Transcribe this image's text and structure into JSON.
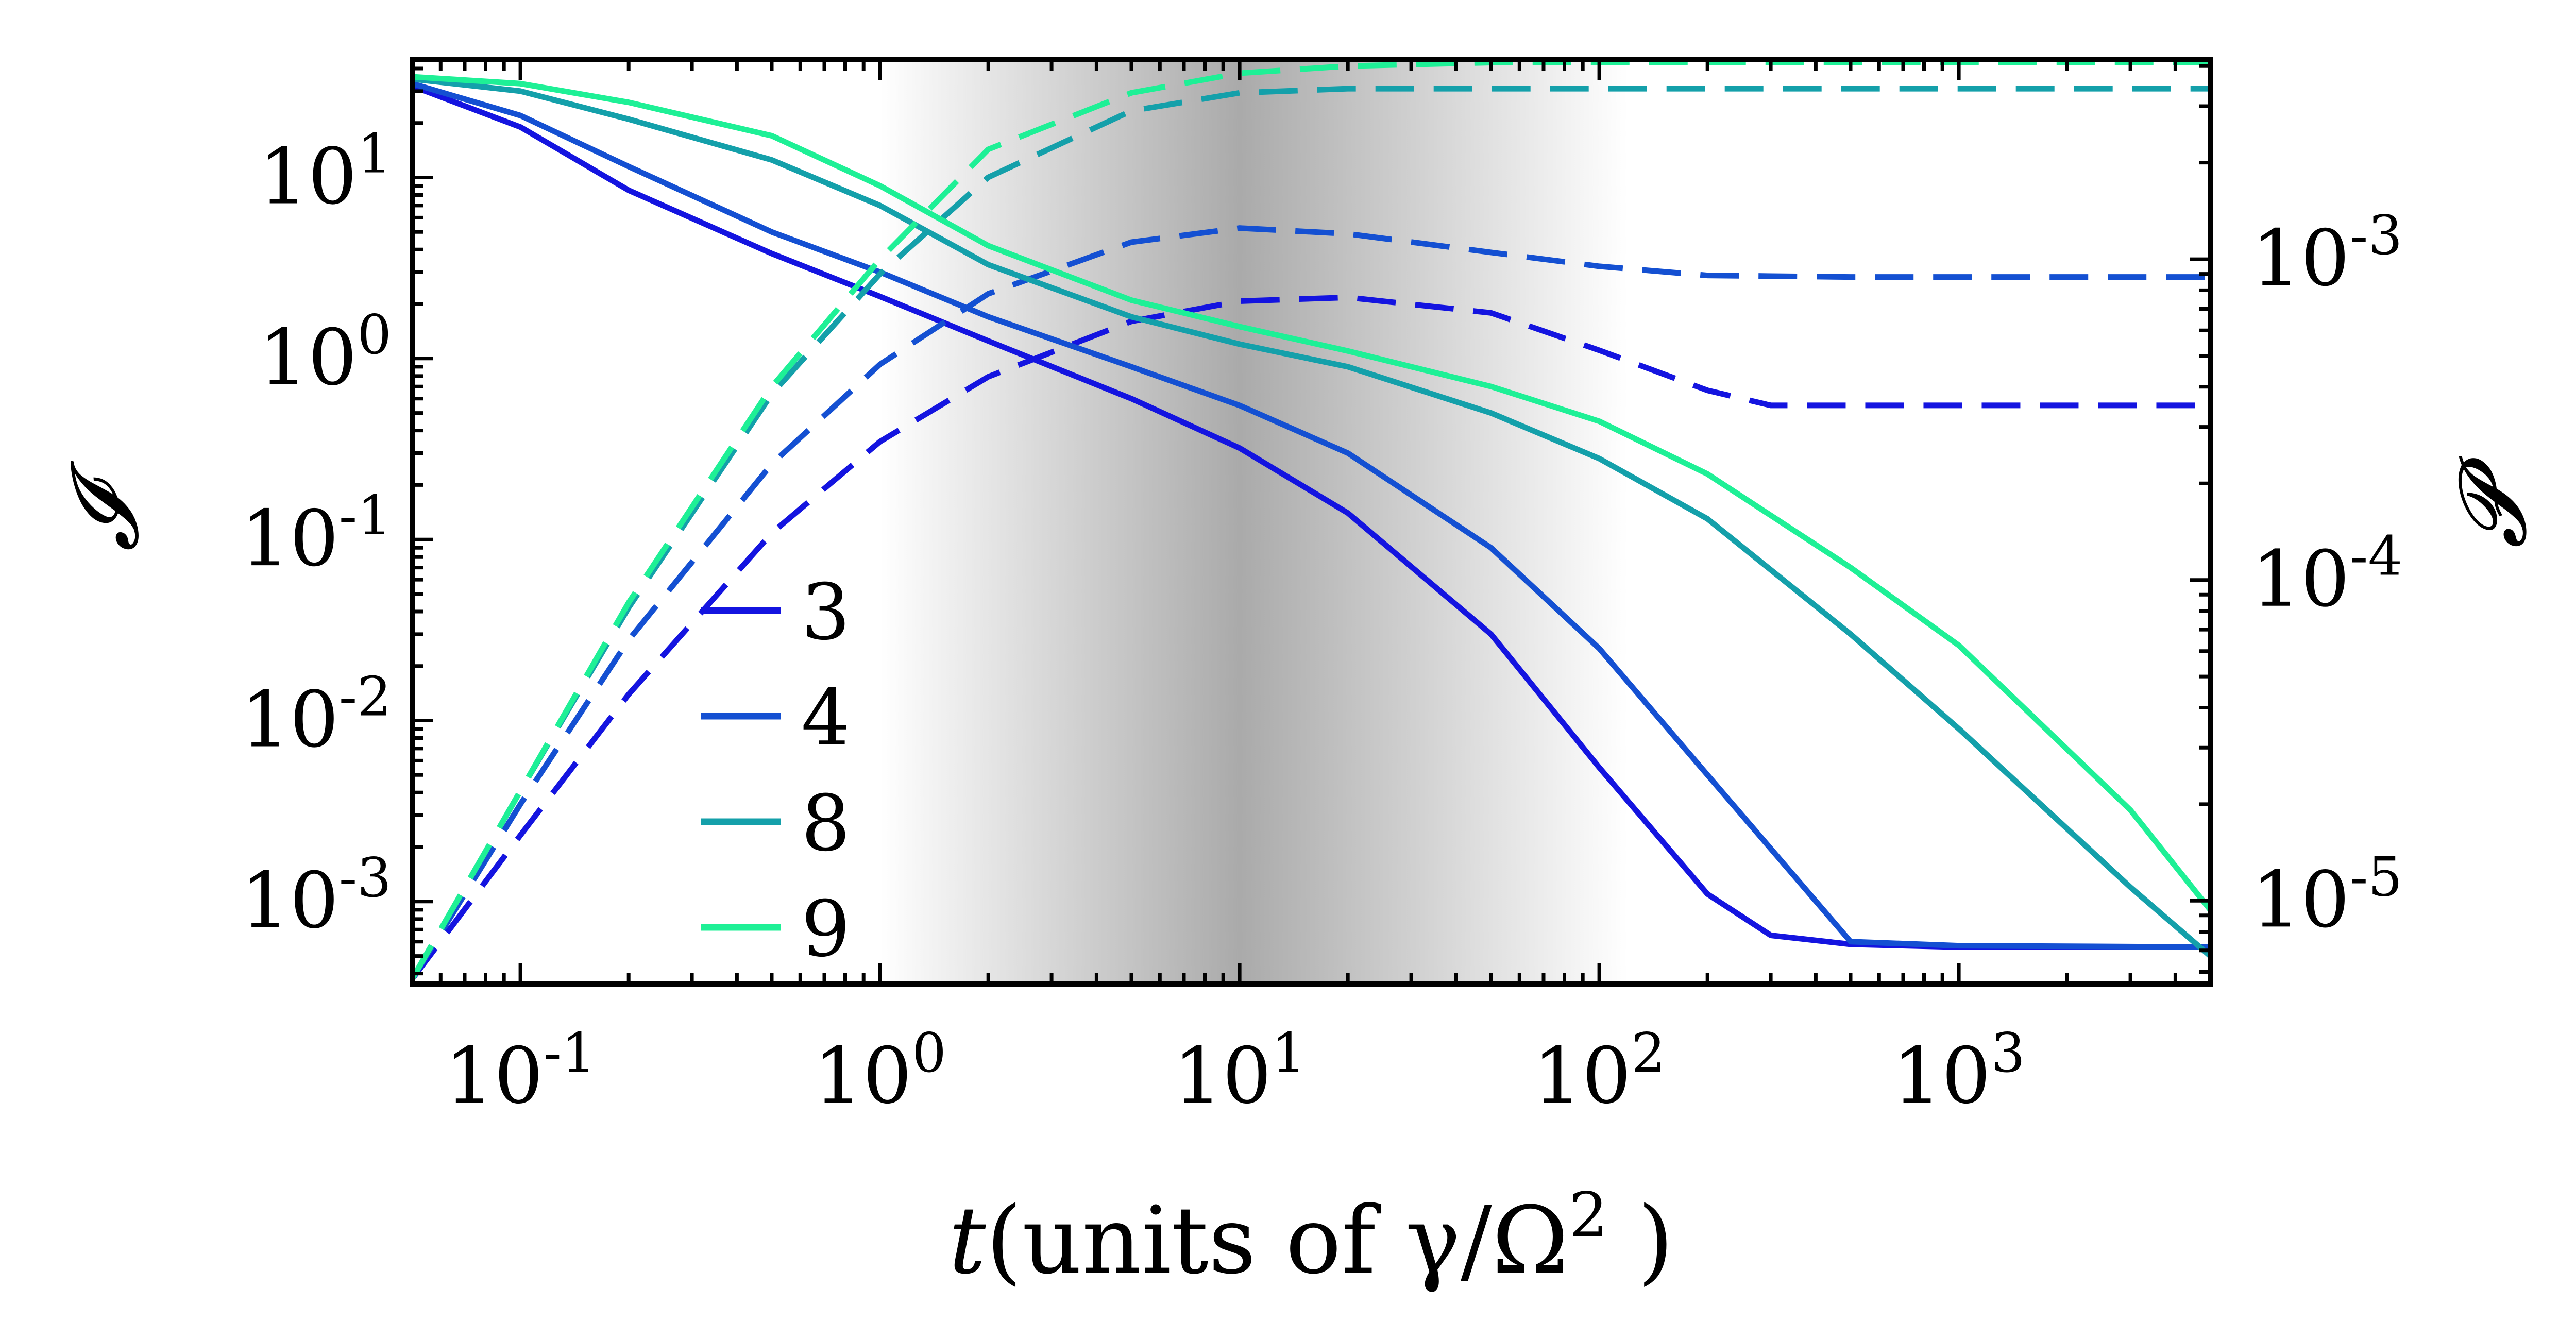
{
  "chart_data": {
    "type": "line",
    "x_scale": "log",
    "y_left_scale": "log",
    "y_right_scale": "log",
    "xlim": [
      0.05,
      5000
    ],
    "ylim_left": [
      0.00035,
      45
    ],
    "ylim_right": [
      5.5e-06,
      0.0042
    ],
    "xlabel_var": "t",
    "xlabel_rest": "(units of γ/Ω",
    "xlabel_sup": "2",
    "xlabel_close": " )",
    "ylabel_left": "𝓘",
    "ylabel_right": "𝓟",
    "x_ticks": [
      {
        "base": "10",
        "exp": "-1",
        "value": 0.1
      },
      {
        "base": "10",
        "exp": "0",
        "value": 1
      },
      {
        "base": "10",
        "exp": "1",
        "value": 10
      },
      {
        "base": "10",
        "exp": "2",
        "value": 100
      },
      {
        "base": "10",
        "exp": "3",
        "value": 1000
      }
    ],
    "y_left_ticks": [
      {
        "base": "10",
        "exp": "1",
        "value": 10
      },
      {
        "base": "10",
        "exp": "0",
        "value": 1
      },
      {
        "base": "10",
        "exp": "-1",
        "value": 0.1
      },
      {
        "base": "10",
        "exp": "-2",
        "value": 0.01
      },
      {
        "base": "10",
        "exp": "-3",
        "value": 0.001
      }
    ],
    "y_right_ticks": [
      {
        "base": "10",
        "exp": "-3",
        "value": 0.001
      },
      {
        "base": "10",
        "exp": "-4",
        "value": 0.0001
      },
      {
        "base": "10",
        "exp": "-5",
        "value": 1e-05
      }
    ],
    "shaded_region": {
      "x_from": 1,
      "x_peak": 10,
      "x_to": 120
    },
    "legend_position": "lower-left inside",
    "series": [
      {
        "name": "3",
        "color": "#1414e0",
        "solid": {
          "x": [
            0.05,
            0.1,
            0.2,
            0.5,
            1,
            2,
            5,
            10,
            20,
            50,
            100,
            200,
            300,
            500,
            1000,
            5000
          ],
          "y": [
            32,
            19,
            8.5,
            3.8,
            2.2,
            1.25,
            0.6,
            0.32,
            0.14,
            0.03,
            0.0055,
            0.0011,
            0.00065,
            0.00058,
            0.00056,
            0.00056
          ]
        },
        "dashed": {
          "x": [
            0.05,
            0.1,
            0.2,
            0.5,
            1,
            2,
            5,
            10,
            20,
            50,
            100,
            200,
            300,
            500,
            1000,
            5000
          ],
          "y": [
            5.7e-06,
            1.6e-05,
            4.4e-05,
            0.00014,
            0.00027,
            0.00043,
            0.00064,
            0.00074,
            0.00076,
            0.00068,
            0.00052,
            0.00039,
            0.00035,
            0.00035,
            0.00035,
            0.00035
          ]
        }
      },
      {
        "name": "4",
        "color": "#1450d2",
        "solid": {
          "x": [
            0.05,
            0.1,
            0.2,
            0.5,
            1,
            2,
            5,
            10,
            20,
            50,
            100,
            200,
            500,
            1000,
            5000
          ],
          "y": [
            33,
            22,
            11.5,
            5,
            3,
            1.7,
            0.9,
            0.55,
            0.3,
            0.09,
            0.025,
            0.005,
            0.0006,
            0.00057,
            0.00056
          ]
        },
        "dashed": {
          "x": [
            0.05,
            0.1,
            0.2,
            0.5,
            1,
            2,
            5,
            10,
            20,
            50,
            100,
            200,
            500,
            1000,
            5000
          ],
          "y": [
            5.7e-06,
            2e-05,
            6.5e-05,
            0.00023,
            0.00047,
            0.00078,
            0.00113,
            0.00125,
            0.0012,
            0.00105,
            0.00095,
            0.00089,
            0.00088,
            0.00088,
            0.00088
          ]
        }
      },
      {
        "name": "8",
        "color": "#14a0aa",
        "solid": {
          "x": [
            0.05,
            0.1,
            0.2,
            0.5,
            1,
            2,
            5,
            10,
            20,
            50,
            100,
            200,
            500,
            1000,
            3000,
            5000
          ],
          "y": [
            35,
            30,
            21,
            12.5,
            7,
            3.3,
            1.7,
            1.2,
            0.9,
            0.5,
            0.28,
            0.13,
            0.03,
            0.009,
            0.0012,
            0.0005
          ]
        },
        "dashed": {
          "x": [
            0.05,
            0.1,
            0.2,
            0.5,
            1,
            2,
            5,
            10,
            20,
            50,
            100,
            500,
            5000
          ],
          "y": [
            5.7e-06,
            2.2e-05,
            8.2e-05,
            0.00038,
            0.0009,
            0.0018,
            0.0029,
            0.0033,
            0.0034,
            0.0034,
            0.0034,
            0.0034,
            0.0034
          ]
        }
      },
      {
        "name": "9",
        "color": "#1ef096",
        "solid": {
          "x": [
            0.05,
            0.1,
            0.2,
            0.5,
            1,
            2,
            5,
            10,
            20,
            50,
            100,
            200,
            500,
            1000,
            3000,
            5000
          ],
          "y": [
            36,
            33,
            26,
            17,
            9,
            4.2,
            2.1,
            1.5,
            1.1,
            0.7,
            0.45,
            0.23,
            0.07,
            0.026,
            0.0032,
            0.0009
          ]
        },
        "dashed": {
          "x": [
            0.05,
            0.1,
            0.2,
            0.5,
            1,
            2,
            5,
            10,
            20,
            50,
            100,
            500,
            5000
          ],
          "y": [
            5.7e-06,
            2.2e-05,
            8.5e-05,
            0.0004,
            0.001,
            0.0022,
            0.0033,
            0.0038,
            0.004,
            0.0041,
            0.0041,
            0.0041,
            0.0041
          ]
        }
      }
    ]
  }
}
